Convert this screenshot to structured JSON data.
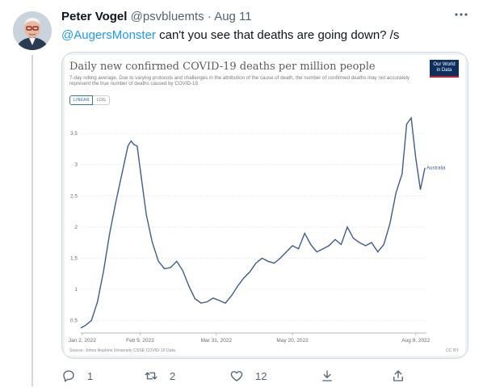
{
  "tweet": {
    "display_name": "Peter Vogel",
    "handle": "@psvbluemts",
    "separator": "·",
    "date": "Aug 11",
    "mention": "@AugersMonster",
    "text": " can't you see that deaths are going down? /s"
  },
  "actions": {
    "reply_count": "1",
    "retweet_count": "2",
    "like_count": "12"
  },
  "chart": {
    "title": "Daily new confirmed COVID-19 deaths per million people",
    "subtitle": "7-day rolling average. Due to varying protocols and challenges in the attribution of the cause of death, the number of confirmed deaths may not accurately represent the true number of deaths caused by COVID-19.",
    "logo_line1": "Our World",
    "logo_line2": "in Data",
    "toggle_linear": "LINEAR",
    "toggle_log": "LOG",
    "source": "Source: Johns Hopkins University CSSE COVID-19 Data",
    "license": "CC BY"
  },
  "chart_data": {
    "type": "line",
    "title": "Daily new confirmed COVID-19 deaths per million people",
    "xlabel": "",
    "ylabel": "",
    "x_tick_labels": [
      "Jan 2, 2022",
      "Feb 9, 2022",
      "Mar 31, 2022",
      "May 20, 2022",
      "Aug 9, 2022"
    ],
    "y_tick_labels": [
      "0.5",
      "1",
      "1.5",
      "2",
      "2.5",
      "3",
      "3.5"
    ],
    "ylim": [
      0.3,
      3.8
    ],
    "grid": true,
    "series": [
      {
        "name": "Australia",
        "color": "#3f5d8a",
        "x": [
          "2022-01-01",
          "2022-01-04",
          "2022-01-08",
          "2022-01-12",
          "2022-01-16",
          "2022-01-20",
          "2022-01-24",
          "2022-01-28",
          "2022-02-01",
          "2022-02-03",
          "2022-02-05",
          "2022-02-07",
          "2022-02-10",
          "2022-02-13",
          "2022-02-17",
          "2022-02-21",
          "2022-02-25",
          "2022-03-01",
          "2022-03-05",
          "2022-03-09",
          "2022-03-13",
          "2022-03-17",
          "2022-03-21",
          "2022-03-25",
          "2022-03-29",
          "2022-04-02",
          "2022-04-06",
          "2022-04-10",
          "2022-04-14",
          "2022-04-18",
          "2022-04-22",
          "2022-04-26",
          "2022-04-30",
          "2022-05-04",
          "2022-05-08",
          "2022-05-12",
          "2022-05-16",
          "2022-05-20",
          "2022-05-24",
          "2022-05-28",
          "2022-06-01",
          "2022-06-05",
          "2022-06-09",
          "2022-06-13",
          "2022-06-17",
          "2022-06-21",
          "2022-06-25",
          "2022-06-29",
          "2022-07-03",
          "2022-07-07",
          "2022-07-11",
          "2022-07-15",
          "2022-07-19",
          "2022-07-23",
          "2022-07-27",
          "2022-07-31",
          "2022-08-03",
          "2022-08-06",
          "2022-08-09",
          "2022-08-12",
          "2022-08-15"
        ],
        "values": [
          0.38,
          0.42,
          0.5,
          0.8,
          1.3,
          1.9,
          2.4,
          2.85,
          3.3,
          3.38,
          3.32,
          3.3,
          2.75,
          2.2,
          1.75,
          1.45,
          1.33,
          1.35,
          1.45,
          1.3,
          1.05,
          0.85,
          0.78,
          0.8,
          0.86,
          0.82,
          0.78,
          0.9,
          1.05,
          1.18,
          1.28,
          1.42,
          1.5,
          1.45,
          1.42,
          1.5,
          1.6,
          1.7,
          1.65,
          1.9,
          1.72,
          1.6,
          1.65,
          1.7,
          1.8,
          1.72,
          2.0,
          1.82,
          1.75,
          1.7,
          1.75,
          1.6,
          1.72,
          2.05,
          2.55,
          2.85,
          3.65,
          3.75,
          3.1,
          2.6,
          2.95
        ]
      }
    ]
  }
}
